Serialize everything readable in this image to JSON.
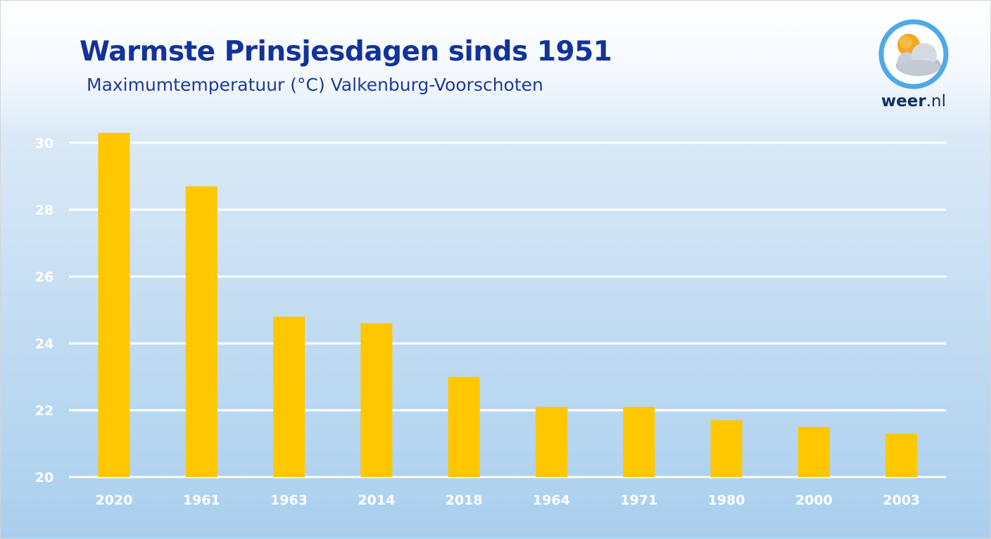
{
  "header": {
    "title": "Warmste Prinsjesdagen sinds 1951",
    "subtitle": "Maximumtemperatuur (°C) Valkenburg-Voorschoten"
  },
  "logo": {
    "brand": "weer",
    "suffix": ".nl",
    "icon": "sun-cloud-icon",
    "ring_color": "#4fa8e8",
    "sun_color": "#f5a623"
  },
  "colors": {
    "bar": "#ffc700",
    "gridline": "#ffffff",
    "title": "#13339a"
  },
  "chart_data": {
    "type": "bar",
    "title": "Warmste Prinsjesdagen sinds 1951",
    "subtitle": "Maximumtemperatuur (°C) Valkenburg-Voorschoten",
    "xlabel": "",
    "ylabel": "",
    "categories": [
      "2020",
      "1961",
      "1963",
      "2014",
      "2018",
      "1964",
      "1971",
      "1980",
      "2000",
      "2003"
    ],
    "values": [
      30.3,
      28.7,
      24.8,
      24.6,
      23.0,
      22.1,
      22.1,
      21.7,
      21.5,
      21.3
    ],
    "ylim": [
      20,
      30
    ],
    "yticks": [
      "20",
      "22",
      "24",
      "26",
      "28",
      "30"
    ],
    "grid": true,
    "legend": "none"
  }
}
